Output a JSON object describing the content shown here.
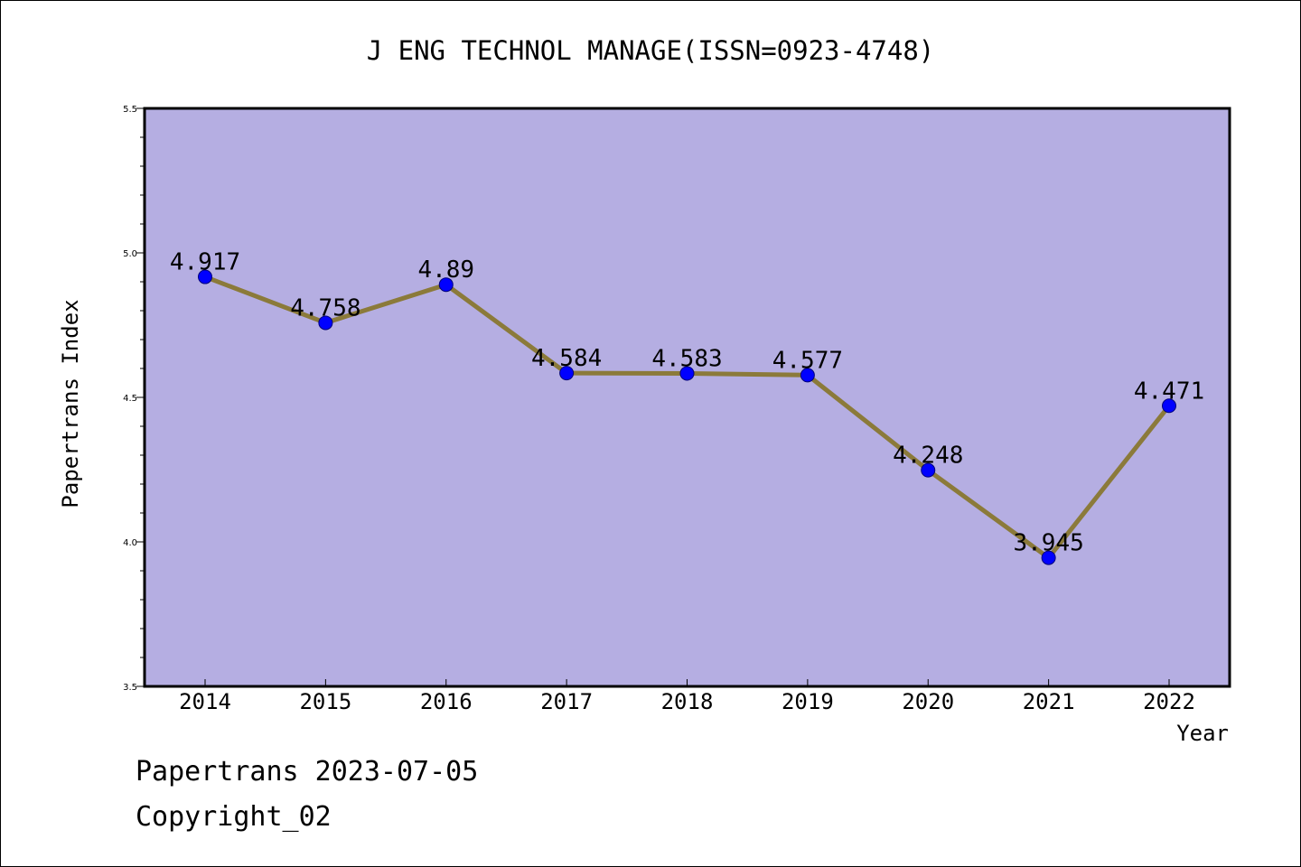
{
  "chart_data": {
    "type": "line",
    "title": "J ENG TECHNOL MANAGE(ISSN=0923-4748)",
    "xlabel": "Year",
    "ylabel": "Papertrans Index",
    "x": [
      "2014",
      "2015",
      "2016",
      "2017",
      "2018",
      "2019",
      "2020",
      "2021",
      "2022"
    ],
    "series": [
      {
        "values": [
          4.917,
          4.758,
          4.89,
          4.584,
          4.583,
          4.577,
          4.248,
          3.945,
          4.471
        ],
        "labels": [
          "4.917",
          "4.758",
          "4.89",
          "4.584",
          "4.583",
          "4.577",
          "4.248",
          "3.945",
          "4.471"
        ]
      }
    ],
    "ylim": [
      3.5,
      5.5
    ],
    "yticks": [
      "3.5",
      "4.0",
      "4.5",
      "5.0",
      "5.5"
    ],
    "grid": false,
    "colors": {
      "plot_background": "#b5aee2",
      "line": "#8b7a3a",
      "marker": "#0000ff"
    }
  },
  "footer": {
    "source": "Papertrans 2023-07-05",
    "copyright": "Copyright_02"
  }
}
